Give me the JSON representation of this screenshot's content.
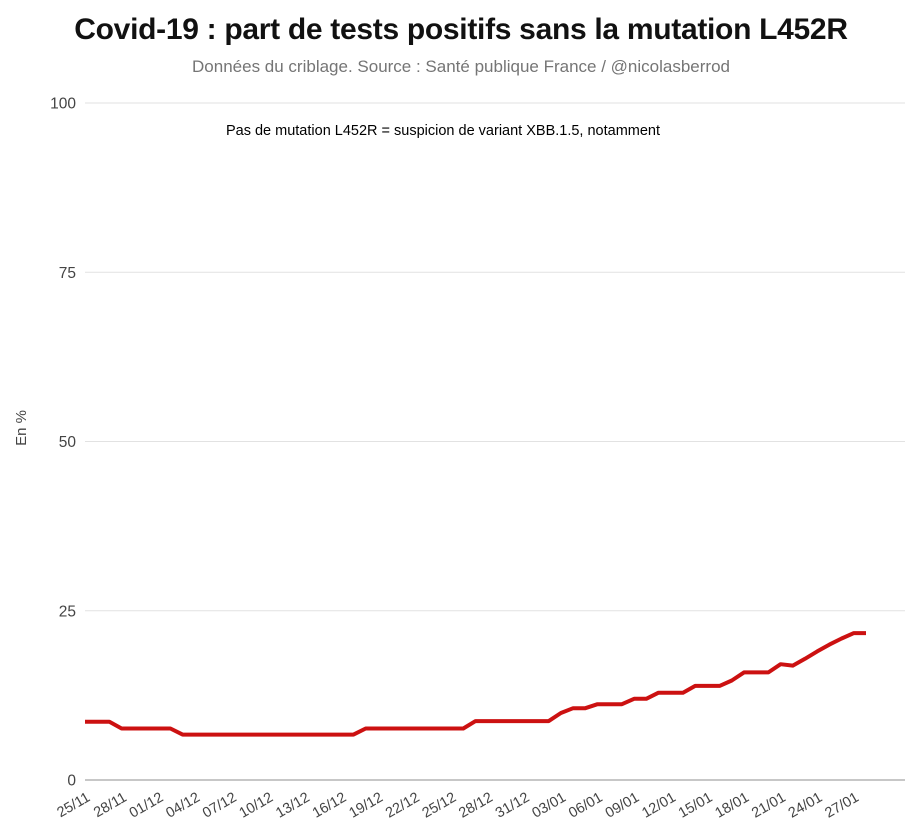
{
  "chart_data": {
    "type": "line",
    "title": "Covid-19 : part de tests positifs sans la mutation L452R",
    "subtitle": "Données du criblage. Source : Santé publique France / @nicolasberrod",
    "annotation": "Pas de mutation L452R = suspicion de variant XBB.1.5, notamment",
    "ylabel": "En %",
    "xlabel": "",
    "ylim": [
      0,
      100
    ],
    "yticks": [
      0,
      25,
      50,
      75,
      100
    ],
    "grid": "horizontal",
    "legend": "none",
    "x_tick_every": 3,
    "x": [
      "25/11",
      "26/11",
      "27/11",
      "28/11",
      "29/11",
      "30/11",
      "01/12",
      "02/12",
      "03/12",
      "04/12",
      "05/12",
      "06/12",
      "07/12",
      "08/12",
      "09/12",
      "10/12",
      "11/12",
      "12/12",
      "13/12",
      "14/12",
      "15/12",
      "16/12",
      "17/12",
      "18/12",
      "19/12",
      "20/12",
      "21/12",
      "22/12",
      "23/12",
      "24/12",
      "25/12",
      "26/12",
      "27/12",
      "28/12",
      "29/12",
      "30/12",
      "31/12",
      "01/01",
      "02/01",
      "03/01",
      "04/01",
      "05/01",
      "06/01",
      "07/01",
      "08/01",
      "09/01",
      "10/01",
      "11/01",
      "12/01",
      "13/01",
      "14/01",
      "15/01",
      "16/01",
      "17/01",
      "18/01",
      "19/01",
      "20/01",
      "21/01",
      "22/01",
      "23/01",
      "24/01",
      "25/01",
      "26/01",
      "27/01",
      "28/01"
    ],
    "series": [
      {
        "name": "Part de tests positifs sans la mutation L452R",
        "color": "#cc1111",
        "values": [
          8.6,
          8.6,
          8.6,
          7.6,
          7.6,
          7.6,
          7.6,
          7.6,
          6.7,
          6.7,
          6.7,
          6.7,
          6.7,
          6.7,
          6.7,
          6.7,
          6.7,
          6.7,
          6.7,
          6.7,
          6.7,
          6.7,
          6.7,
          7.6,
          7.6,
          7.6,
          7.6,
          7.6,
          7.6,
          7.6,
          7.6,
          7.6,
          8.7,
          8.7,
          8.7,
          8.7,
          8.7,
          8.7,
          8.7,
          9.9,
          10.6,
          10.6,
          11.2,
          11.2,
          11.2,
          12.0,
          12.0,
          12.9,
          12.9,
          12.9,
          13.9,
          13.9,
          13.9,
          14.7,
          15.9,
          15.9,
          15.9,
          17.1,
          16.9,
          17.9,
          19.0,
          20.0,
          20.9,
          21.7,
          21.7
        ]
      }
    ],
    "colors": {
      "line": "#cc1111",
      "grid": "#e2e2e2",
      "zero_axis": "#8f8f8f",
      "tick_text": "#444444",
      "title_text": "#111111",
      "subtitle_text": "#757575"
    }
  }
}
